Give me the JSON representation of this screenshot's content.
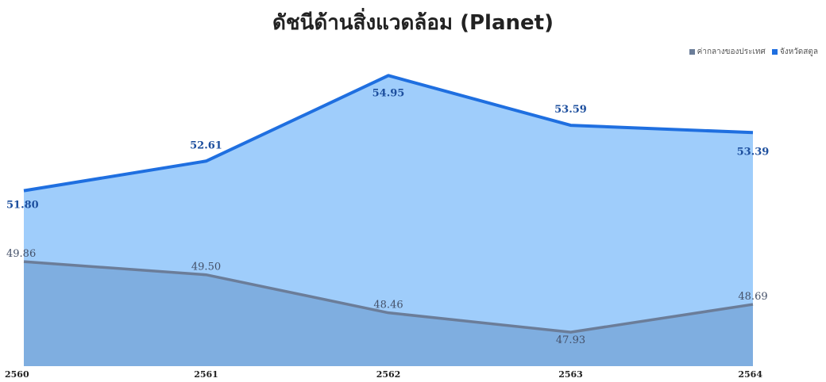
{
  "chart_data": {
    "type": "area",
    "title": "ดัชนีด้านสิ่งแวดล้อม (Planet)",
    "categories": [
      "2560",
      "2561",
      "2562",
      "2563",
      "2564"
    ],
    "series": [
      {
        "name": "ค่ากลางของประเทศ",
        "values": [
          49.86,
          49.5,
          48.46,
          47.93,
          48.69
        ],
        "labels": [
          "49.86",
          "49.50",
          "48.46",
          "47.93",
          "48.69"
        ],
        "line_color": "#6b7d99",
        "fill_color": "#7faee0"
      },
      {
        "name": "จังหวัดสตูล",
        "values": [
          51.8,
          52.61,
          54.95,
          53.59,
          53.39
        ],
        "labels": [
          "51.80",
          "52.61",
          "54.95",
          "53.59",
          "53.39"
        ],
        "line_color": "#1f6fe0",
        "fill_color": "#9fcdfb"
      }
    ],
    "ylim": [
      47.0,
      55.5
    ],
    "xlabel": "",
    "ylabel": "",
    "grid": false,
    "legend_position": "top-right"
  }
}
